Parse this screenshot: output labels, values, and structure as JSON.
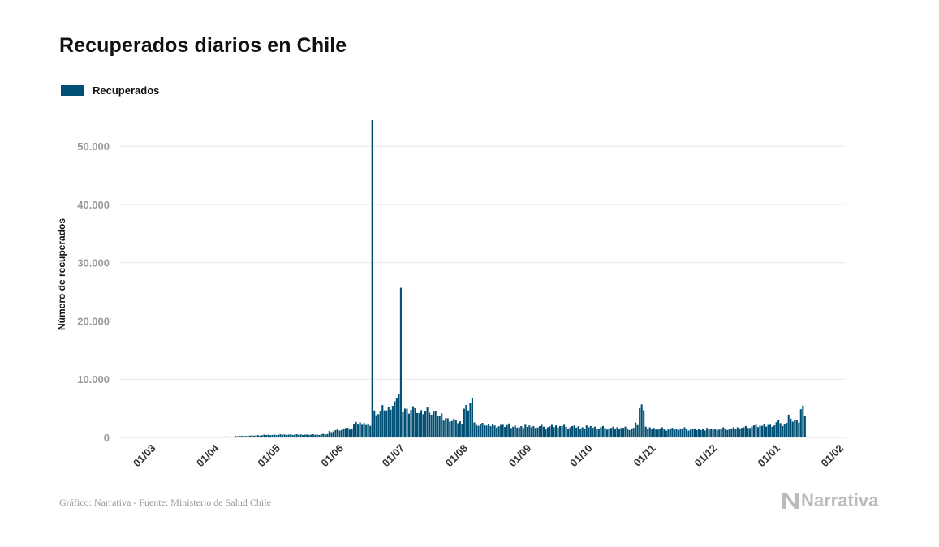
{
  "title": "Recuperados diarios en Chile",
  "legend": {
    "label": "Recuperados",
    "color": "#004f74"
  },
  "source": "Gráfico: Narrativa - Fuente: Ministerio de Salud Chile",
  "brand": {
    "name": "Narrativa",
    "icon": "narrativa-logo-icon"
  },
  "chart_data": {
    "type": "bar",
    "ylabel": "Número de recuperados",
    "xlabel": "",
    "ylim": [
      0,
      57000
    ],
    "grid": true,
    "y_ticks": [
      0,
      10000,
      20000,
      30000,
      40000,
      50000
    ],
    "y_tick_labels": [
      "0",
      "10.000",
      "20.000",
      "30.000",
      "40.000",
      "50.000"
    ],
    "x_tick_labels": [
      "01/03",
      "01/04",
      "01/05",
      "01/06",
      "01/07",
      "01/08",
      "01/09",
      "01/10",
      "01/11",
      "01/12",
      "01/01",
      "01/02"
    ],
    "x_tick_dates": [
      "2020-03-01",
      "2020-04-01",
      "2020-05-01",
      "2020-06-01",
      "2020-07-01",
      "2020-08-01",
      "2020-09-01",
      "2020-10-01",
      "2020-11-01",
      "2020-12-01",
      "2021-01-01",
      "2021-02-01"
    ],
    "series": [
      {
        "name": "Recuperados",
        "color": "#004f74",
        "points": [
          [
            "2020-03-03",
            0
          ],
          [
            "2020-03-10",
            20
          ],
          [
            "2020-03-17",
            40
          ],
          [
            "2020-03-24",
            60
          ],
          [
            "2020-03-31",
            80
          ],
          [
            "2020-04-07",
            150
          ],
          [
            "2020-04-14",
            250
          ],
          [
            "2020-04-21",
            350
          ],
          [
            "2020-04-28",
            450
          ],
          [
            "2020-05-05",
            500
          ],
          [
            "2020-05-12",
            500
          ],
          [
            "2020-05-19",
            500
          ],
          [
            "2020-05-26",
            600
          ],
          [
            "2020-05-30",
            1000
          ],
          [
            "2020-06-02",
            1300
          ],
          [
            "2020-06-05",
            1500
          ],
          [
            "2020-06-08",
            1600
          ],
          [
            "2020-06-11",
            2600
          ],
          [
            "2020-06-14",
            2400
          ],
          [
            "2020-06-17",
            2200
          ],
          [
            "2020-06-20",
            54500
          ],
          [
            "2020-06-21",
            4500
          ],
          [
            "2020-06-23",
            4400
          ],
          [
            "2020-06-25",
            5100
          ],
          [
            "2020-06-27",
            4800
          ],
          [
            "2020-06-29",
            5600
          ],
          [
            "2020-07-01",
            6200
          ],
          [
            "2020-07-02",
            6800
          ],
          [
            "2020-07-03",
            7500
          ],
          [
            "2020-07-04",
            25700
          ],
          [
            "2020-07-05",
            5100
          ],
          [
            "2020-07-07",
            4800
          ],
          [
            "2020-07-09",
            5200
          ],
          [
            "2020-07-11",
            4600
          ],
          [
            "2020-07-13",
            4300
          ],
          [
            "2020-07-15",
            4700
          ],
          [
            "2020-07-17",
            5000
          ],
          [
            "2020-07-19",
            4300
          ],
          [
            "2020-07-21",
            4100
          ],
          [
            "2020-07-23",
            3800
          ],
          [
            "2020-07-25",
            3400
          ],
          [
            "2020-07-27",
            3200
          ],
          [
            "2020-07-29",
            3100
          ],
          [
            "2020-07-31",
            2700
          ],
          [
            "2020-08-04",
            5100
          ],
          [
            "2020-08-07",
            7000
          ],
          [
            "2020-08-09",
            2500
          ],
          [
            "2020-08-11",
            2200
          ],
          [
            "2020-08-13",
            2300
          ],
          [
            "2020-08-15",
            2100
          ],
          [
            "2020-08-17",
            2300
          ],
          [
            "2020-08-19",
            2000
          ],
          [
            "2020-08-21",
            2100
          ],
          [
            "2020-08-23",
            2000
          ],
          [
            "2020-08-25",
            2200
          ],
          [
            "2020-08-27",
            1900
          ],
          [
            "2020-08-29",
            2000
          ],
          [
            "2020-08-31",
            1900
          ],
          [
            "2020-09-03",
            2000
          ],
          [
            "2020-09-06",
            1800
          ],
          [
            "2020-09-09",
            2000
          ],
          [
            "2020-09-12",
            1800
          ],
          [
            "2020-09-15",
            2100
          ],
          [
            "2020-09-18",
            1900
          ],
          [
            "2020-09-21",
            2000
          ],
          [
            "2020-09-24",
            1800
          ],
          [
            "2020-09-27",
            2000
          ],
          [
            "2020-09-30",
            1700
          ],
          [
            "2020-10-03",
            1900
          ],
          [
            "2020-10-06",
            1700
          ],
          [
            "2020-10-09",
            1800
          ],
          [
            "2020-10-12",
            1600
          ],
          [
            "2020-10-15",
            1800
          ],
          [
            "2020-10-18",
            1600
          ],
          [
            "2020-10-21",
            1700
          ],
          [
            "2020-10-24",
            1500
          ],
          [
            "2020-10-27",
            2500
          ],
          [
            "2020-10-29",
            5500
          ],
          [
            "2020-11-01",
            1700
          ],
          [
            "2020-11-04",
            1500
          ],
          [
            "2020-11-07",
            1600
          ],
          [
            "2020-11-10",
            1400
          ],
          [
            "2020-11-13",
            1600
          ],
          [
            "2020-11-16",
            1400
          ],
          [
            "2020-11-19",
            1600
          ],
          [
            "2020-11-22",
            1400
          ],
          [
            "2020-11-25",
            1500
          ],
          [
            "2020-11-28",
            1400
          ],
          [
            "2020-12-01",
            1500
          ],
          [
            "2020-12-04",
            1400
          ],
          [
            "2020-12-07",
            1600
          ],
          [
            "2020-12-10",
            1500
          ],
          [
            "2020-12-13",
            1700
          ],
          [
            "2020-12-16",
            1600
          ],
          [
            "2020-12-19",
            1800
          ],
          [
            "2020-12-22",
            1900
          ],
          [
            "2020-12-25",
            2100
          ],
          [
            "2020-12-28",
            2200
          ],
          [
            "2021-01-01",
            2000
          ],
          [
            "2021-01-04",
            2700
          ],
          [
            "2021-01-07",
            2300
          ],
          [
            "2021-01-10",
            3800
          ],
          [
            "2021-01-12",
            3000
          ],
          [
            "2021-01-14",
            2800
          ],
          [
            "2021-01-16",
            5000
          ],
          [
            "2021-01-18",
            4300
          ]
        ]
      }
    ]
  }
}
